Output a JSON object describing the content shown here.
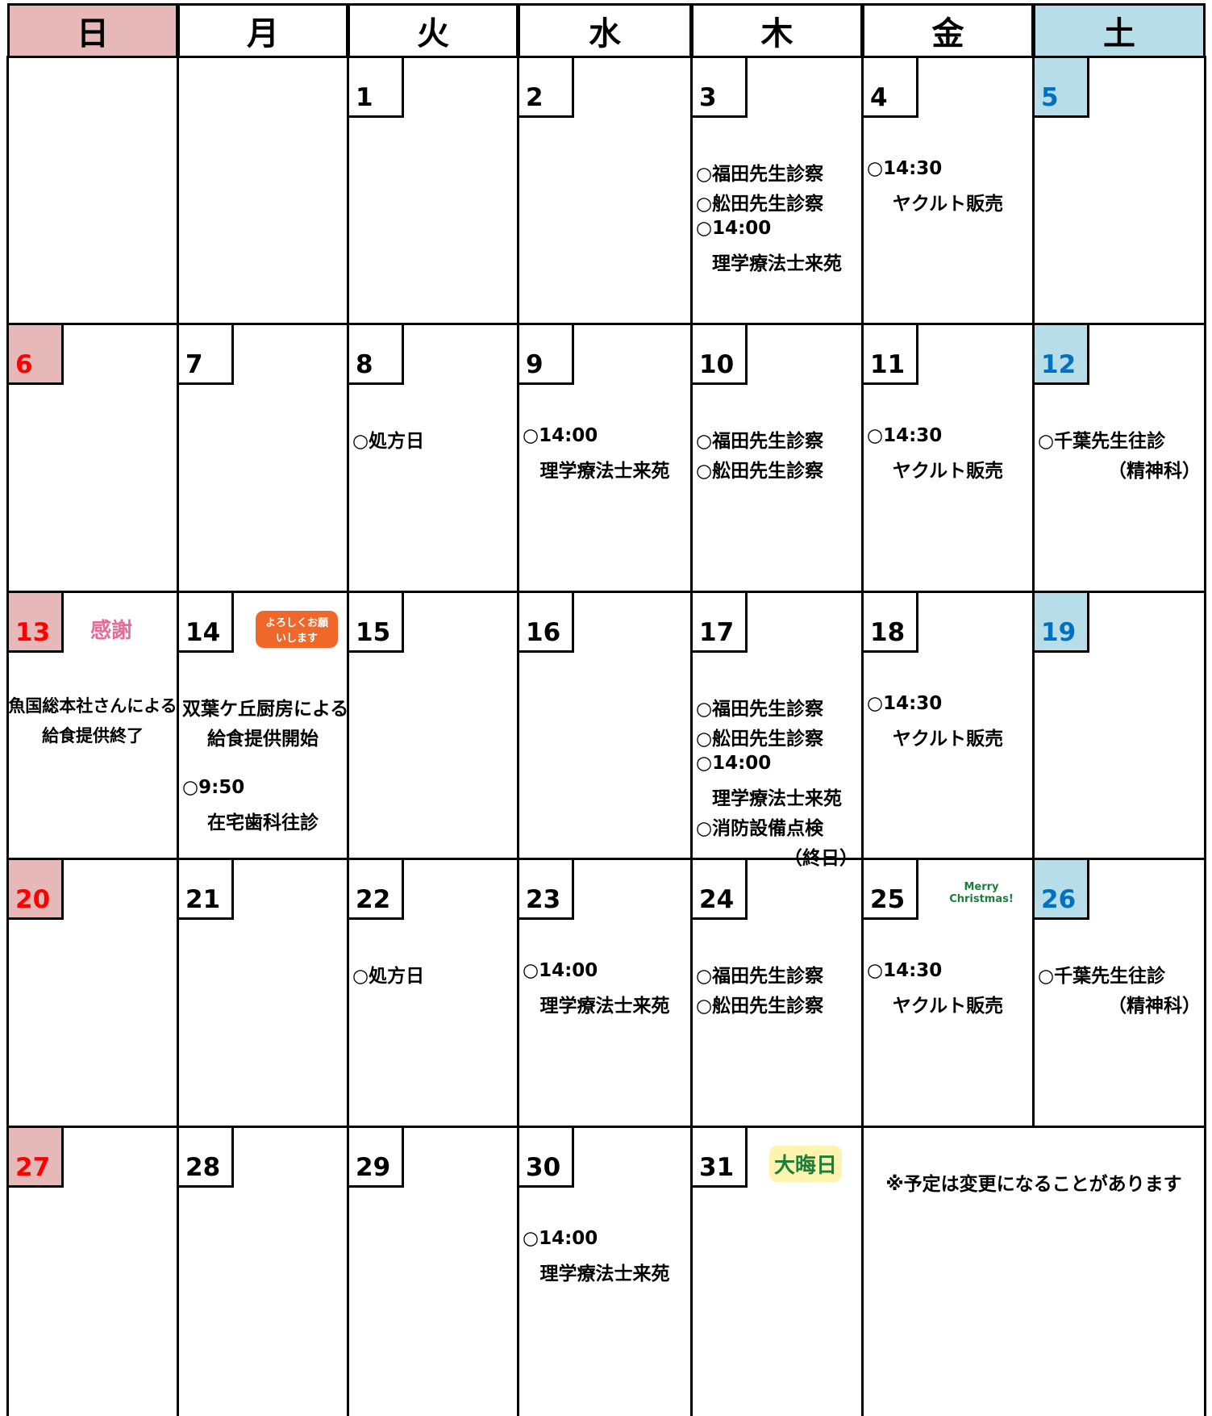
{
  "header": {
    "days": [
      "日",
      "月",
      "火",
      "水",
      "木",
      "金",
      "土"
    ]
  },
  "weeks": [
    [
      {},
      {},
      {
        "day": "1"
      },
      {
        "day": "2"
      },
      {
        "day": "3",
        "events": [
          "○福田先生診察",
          "○舩田先生診察",
          "○14:00",
          "理学療法士来苑"
        ]
      },
      {
        "day": "4",
        "events": [
          "○14:30",
          "ヤクルト販売"
        ]
      },
      {
        "day": "5"
      }
    ],
    [
      {
        "day": "6"
      },
      {
        "day": "7"
      },
      {
        "day": "8",
        "events": [
          "○処方日"
        ]
      },
      {
        "day": "9",
        "events": [
          "○14:00",
          "理学療法士来苑"
        ]
      },
      {
        "day": "10",
        "events": [
          "○福田先生診察",
          "○舩田先生診察"
        ]
      },
      {
        "day": "11",
        "events": [
          "○14:30",
          "ヤクルト販売"
        ]
      },
      {
        "day": "12",
        "events": [
          "○千葉先生往診",
          "（精神科）"
        ]
      }
    ],
    [
      {
        "day": "13",
        "icon_text": "感謝",
        "events": [
          "魚国総本社さんによる",
          "給食提供終了"
        ]
      },
      {
        "day": "14",
        "icon_text": "よろしくお願いします",
        "events": [
          "双葉ケ丘厨房による",
          "給食提供開始",
          "○9:50",
          "在宅歯科往診"
        ]
      },
      {
        "day": "15"
      },
      {
        "day": "16"
      },
      {
        "day": "17",
        "events": [
          "○福田先生診察",
          "○舩田先生診察",
          "○14:00",
          "理学療法士来苑",
          "○消防設備点検",
          "（終日）"
        ]
      },
      {
        "day": "18",
        "events": [
          "○14:30",
          "ヤクルト販売"
        ]
      },
      {
        "day": "19"
      }
    ],
    [
      {
        "day": "20"
      },
      {
        "day": "21"
      },
      {
        "day": "22",
        "events": [
          "○処方日"
        ]
      },
      {
        "day": "23",
        "events": [
          "○14:00",
          "理学療法士来苑"
        ]
      },
      {
        "day": "24",
        "events": [
          "○福田先生診察",
          "○舩田先生診察"
        ]
      },
      {
        "day": "25",
        "icon_text": "Merry Christmas!",
        "events": [
          "○14:30",
          "ヤクルト販売"
        ]
      },
      {
        "day": "26",
        "events": [
          "○千葉先生往診",
          "（精神科）"
        ]
      }
    ],
    [
      {
        "day": "27"
      },
      {
        "day": "28"
      },
      {
        "day": "29"
      },
      {
        "day": "30",
        "events": [
          "○14:00",
          "理学療法士来苑"
        ]
      },
      {
        "day": "31",
        "icon_text": "大晦日"
      },
      {
        "note": "※予定は変更になることがあります"
      }
    ]
  ]
}
